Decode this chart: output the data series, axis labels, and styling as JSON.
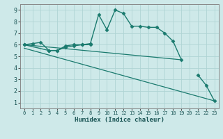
{
  "xlabel": "Humidex (Indice chaleur)",
  "bg_color": "#cee9e9",
  "line_color": "#1a7a6e",
  "grid_color": "#afd4d4",
  "xlim": [
    -0.5,
    23.5
  ],
  "ylim": [
    0.5,
    9.5
  ],
  "xticks": [
    0,
    1,
    2,
    3,
    4,
    5,
    6,
    7,
    8,
    9,
    10,
    11,
    12,
    13,
    14,
    15,
    16,
    17,
    18,
    19,
    20,
    21,
    22,
    23
  ],
  "yticks": [
    1,
    2,
    3,
    4,
    5,
    6,
    7,
    8,
    9
  ],
  "series": [
    {
      "x": [
        0,
        1,
        2,
        3,
        4,
        5,
        6,
        7,
        8,
        9,
        10,
        11,
        12,
        13,
        14,
        15,
        16,
        17,
        18,
        19
      ],
      "y": [
        6.0,
        6.1,
        6.2,
        5.5,
        5.5,
        5.9,
        6.0,
        6.0,
        6.1,
        8.6,
        7.3,
        9.0,
        8.7,
        7.6,
        7.6,
        7.5,
        7.5,
        7.0,
        6.3,
        4.7
      ],
      "marker": "D",
      "markersize": 2.5,
      "linewidth": 1.0
    },
    {
      "x": [
        0,
        3,
        4,
        5,
        6,
        7,
        8
      ],
      "y": [
        6.0,
        5.5,
        5.5,
        5.8,
        5.9,
        6.0,
        6.0
      ],
      "marker": "D",
      "markersize": 2.5,
      "linewidth": 1.0
    },
    {
      "x": [
        0,
        19
      ],
      "y": [
        6.0,
        4.7
      ],
      "marker": null,
      "markersize": 0,
      "linewidth": 0.9
    },
    {
      "x": [
        0,
        23
      ],
      "y": [
        5.7,
        1.15
      ],
      "marker": null,
      "markersize": 0,
      "linewidth": 0.9
    },
    {
      "x": [
        21,
        22,
        23
      ],
      "y": [
        3.4,
        2.5,
        1.15
      ],
      "marker": "D",
      "markersize": 2.5,
      "linewidth": 1.0
    }
  ]
}
